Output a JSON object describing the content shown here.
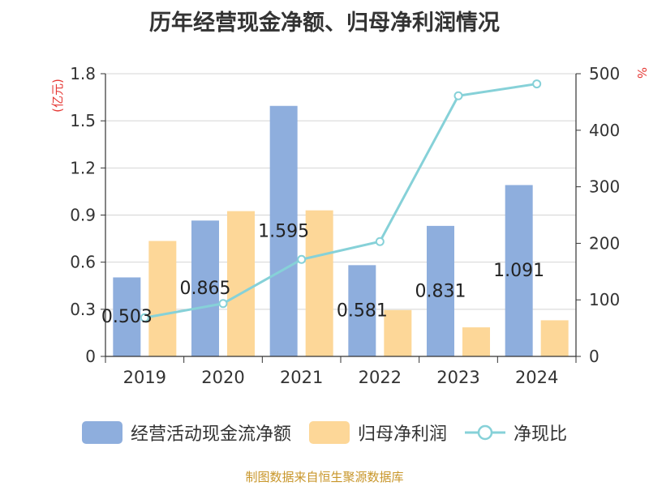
{
  "title": "历年经营现金净额、归母净利润情况",
  "footer": "制图数据来自恒生聚源数据库",
  "chart_data": {
    "type": "bar",
    "title": "历年经营现金净额、归母净利润情况",
    "categories": [
      "2019",
      "2020",
      "2021",
      "2022",
      "2023",
      "2024"
    ],
    "y_left_unit": "(亿元)",
    "y_right_unit": "%",
    "y_left_ticks": [
      "0",
      "0.3",
      "0.6",
      "0.9",
      "1.2",
      "1.5",
      "1.8"
    ],
    "y_right_ticks": [
      "0",
      "100",
      "200",
      "300",
      "400",
      "500"
    ],
    "ylim_left": [
      0,
      1.8
    ],
    "ylim_right": [
      0,
      500
    ],
    "grid": true,
    "legend_position": "bottom",
    "series": [
      {
        "name": "经营活动现金流净额",
        "type": "bar",
        "axis": "left",
        "color": "#8eaedd",
        "values": [
          0.503,
          0.865,
          1.595,
          0.581,
          0.831,
          1.091
        ],
        "labels": [
          "0.503",
          "0.865",
          "1.595",
          "0.581",
          "0.831",
          "1.091"
        ]
      },
      {
        "name": "归母净利润",
        "type": "bar",
        "axis": "left",
        "color": "#fdd798",
        "values": [
          0.735,
          0.925,
          0.93,
          0.295,
          0.185,
          0.23
        ]
      },
      {
        "name": "净现比",
        "type": "line",
        "axis": "right",
        "color": "#86d1d8",
        "values": [
          68.4,
          93.5,
          171.5,
          203.1,
          461.0,
          482.0
        ]
      }
    ]
  }
}
